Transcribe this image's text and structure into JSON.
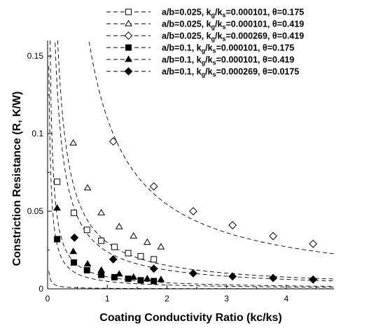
{
  "chart_data": {
    "type": "scatter",
    "title": "",
    "xlabel": "Coating Conductivity Ratio (kc/ks)",
    "ylabel": "Constriction Resistance (R, K/W)",
    "xlim": [
      0,
      4.8
    ],
    "ylim": [
      0,
      0.16
    ],
    "x_ticks": [
      0,
      1,
      2,
      3,
      4
    ],
    "x_tick_labels": [
      "0",
      "1",
      "2",
      "3",
      "4"
    ],
    "y_ticks": [
      0,
      0.05,
      0.1,
      0.15
    ],
    "y_tick_labels": [
      "0",
      "0.05",
      "0.1",
      "0.15"
    ],
    "grid": false,
    "legend_position": "top-right",
    "fit_line_style": "dashed",
    "series": [
      {
        "name": "a/b=0.025, kg/ks=0.000101, θ=0.175",
        "legend_parts": [
          "a/b=0.025, k",
          "g",
          "/k",
          "s",
          "=0.000101, θ=0.175"
        ],
        "marker": "square-open",
        "x": [
          0.16,
          0.44,
          0.66,
          0.9,
          1.12,
          1.35,
          1.56,
          1.78
        ],
        "y": [
          0.069,
          0.049,
          0.038,
          0.031,
          0.027,
          0.023,
          0.021,
          0.019
        ],
        "fit": {
          "a": 0.000353,
          "b": 0.01076
        }
      },
      {
        "name": "a/b=0.025, kg/ks=0.000101, θ=0.419",
        "legend_parts": [
          "a/b=0.025, k",
          "g",
          "/k",
          "s",
          "=0.000101, θ=0.419"
        ],
        "marker": "triangle-open",
        "x": [
          0.43,
          0.67,
          0.9,
          1.2,
          1.44,
          1.67,
          1.9
        ],
        "y": [
          0.094,
          0.065,
          0.049,
          0.04,
          0.034,
          0.03,
          0.027
        ],
        "fit": {
          "a": 0.0305,
          "b": 0.0221
        }
      },
      {
        "name": "a/b=0.025, kg/ks=0.000269, θ=0.419",
        "legend_parts": [
          "a/b=0.025, k",
          "g",
          "/k",
          "s",
          "=0.000269, θ=0.419"
        ],
        "marker": "diamond-open",
        "x": [
          1.1,
          1.78,
          2.44,
          3.1,
          3.78,
          4.45
        ],
        "y": [
          0.095,
          0.066,
          0.05,
          0.041,
          0.034,
          0.029
        ],
        "fit": {
          "a": 0.1079,
          "b": -0.0186
        }
      },
      {
        "name": "a/b=0.1, kg/ks=0.000101, θ=0.175",
        "legend_parts": [
          "a/b=0.1, k",
          "g",
          "/k",
          "s",
          "=0.000101, θ=0.175"
        ],
        "marker": "square-filled",
        "x": [
          0.16,
          0.44,
          0.66,
          0.9,
          1.12,
          1.35,
          1.56,
          1.78
        ],
        "y": [
          0.032,
          0.017,
          0.012,
          0.009,
          0.0075,
          0.0065,
          0.0055,
          0.005
        ],
        "fit": {
          "a": 0.00495,
          "b": 0.0145
        }
      },
      {
        "name": "a/b=0.1, kg/ks=0.000101, θ=0.419",
        "legend_parts": [
          "a/b=0.1, k",
          "g",
          "/k",
          "s",
          "=0.000101, θ=0.419"
        ],
        "marker": "triangle-filled",
        "x": [
          0.16,
          0.43,
          0.67,
          0.9,
          1.2,
          1.44,
          1.67,
          1.9
        ],
        "y": [
          0.052,
          0.024,
          0.016,
          0.012,
          0.0095,
          0.0075,
          0.0065,
          0.006
        ],
        "fit": {
          "a": 0.00782,
          "b": 0.00846
        }
      },
      {
        "name": "a/b=0.1, kg/ks=0.000269, θ=0.0175",
        "legend_parts": [
          "a/b=0.1, k",
          "g",
          "/k",
          "s",
          "=0.000269, θ=0.0175"
        ],
        "marker": "diamond-filled",
        "x": [
          0.45,
          1.1,
          1.78,
          2.44,
          3.1,
          3.78,
          4.45
        ],
        "y": [
          0.033,
          0.019,
          0.013,
          0.01,
          0.008,
          0.007,
          0.006
        ],
        "fit": {
          "a": 0.0246,
          "b": 0.0293
        }
      }
    ]
  }
}
